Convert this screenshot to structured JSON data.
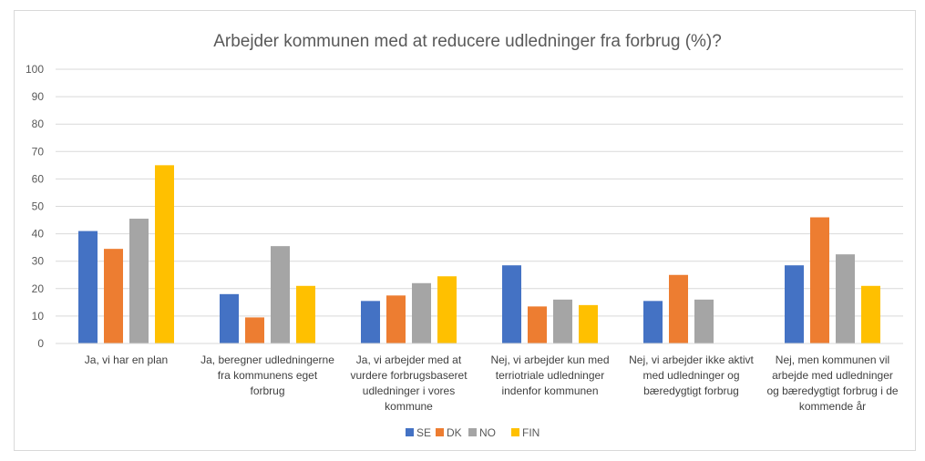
{
  "chart_data": {
    "type": "bar",
    "title": "Arbejder kommunen med at reducere udledninger fra forbrug (%)?",
    "xlabel": "",
    "ylabel": "",
    "ylim": [
      0,
      100
    ],
    "yticks": [
      0,
      10,
      20,
      30,
      40,
      50,
      60,
      70,
      80,
      90,
      100
    ],
    "categories": [
      "Ja, vi har en plan",
      "Ja, beregner udledningerne fra kommunens eget forbrug",
      "Ja, vi arbejder med at vurdere forbrugsbaseret udledninger i vores kommune",
      "Nej, vi arbejder kun med terriotriale udledninger indenfor kommunen",
      "Nej, vi arbejder ikke aktivt med udledninger og bæredygtigt forbrug",
      "Nej, men kommunen vil arbejde med udledninger og bæredygtigt forbrug i de kommende år"
    ],
    "category_lines": [
      [
        "Ja, vi har en plan"
      ],
      [
        "Ja, beregner udledningerne",
        "fra kommunens eget",
        "forbrug"
      ],
      [
        "Ja, vi arbejder med at",
        "vurdere forbrugsbaseret",
        "udledninger i vores",
        "kommune"
      ],
      [
        "Nej, vi arbejder kun med",
        "terriotriale udledninger",
        "indenfor kommunen"
      ],
      [
        "Nej, vi arbejder ikke aktivt",
        "med udledninger og",
        "bæredygtigt forbrug"
      ],
      [
        "Nej, men kommunen vil",
        "arbejde med udledninger",
        "og bæredygtigt forbrug i de",
        "kommende år"
      ]
    ],
    "series": [
      {
        "name": "SE",
        "color": "#4472C4",
        "values": [
          41,
          18,
          15.5,
          28.5,
          15.5,
          28.5
        ]
      },
      {
        "name": "DK",
        "color": "#ED7D31",
        "values": [
          34.5,
          9.5,
          17.5,
          13.5,
          25,
          46
        ]
      },
      {
        "name": "NO",
        "color": "#A5A5A5",
        "values": [
          45.5,
          35.5,
          22,
          16,
          16,
          32.5
        ]
      },
      {
        "name": "FIN",
        "color": "#FFC000",
        "values": [
          65,
          21,
          24.5,
          14,
          0,
          21
        ]
      }
    ],
    "grid": true,
    "legend_position": "bottom"
  }
}
